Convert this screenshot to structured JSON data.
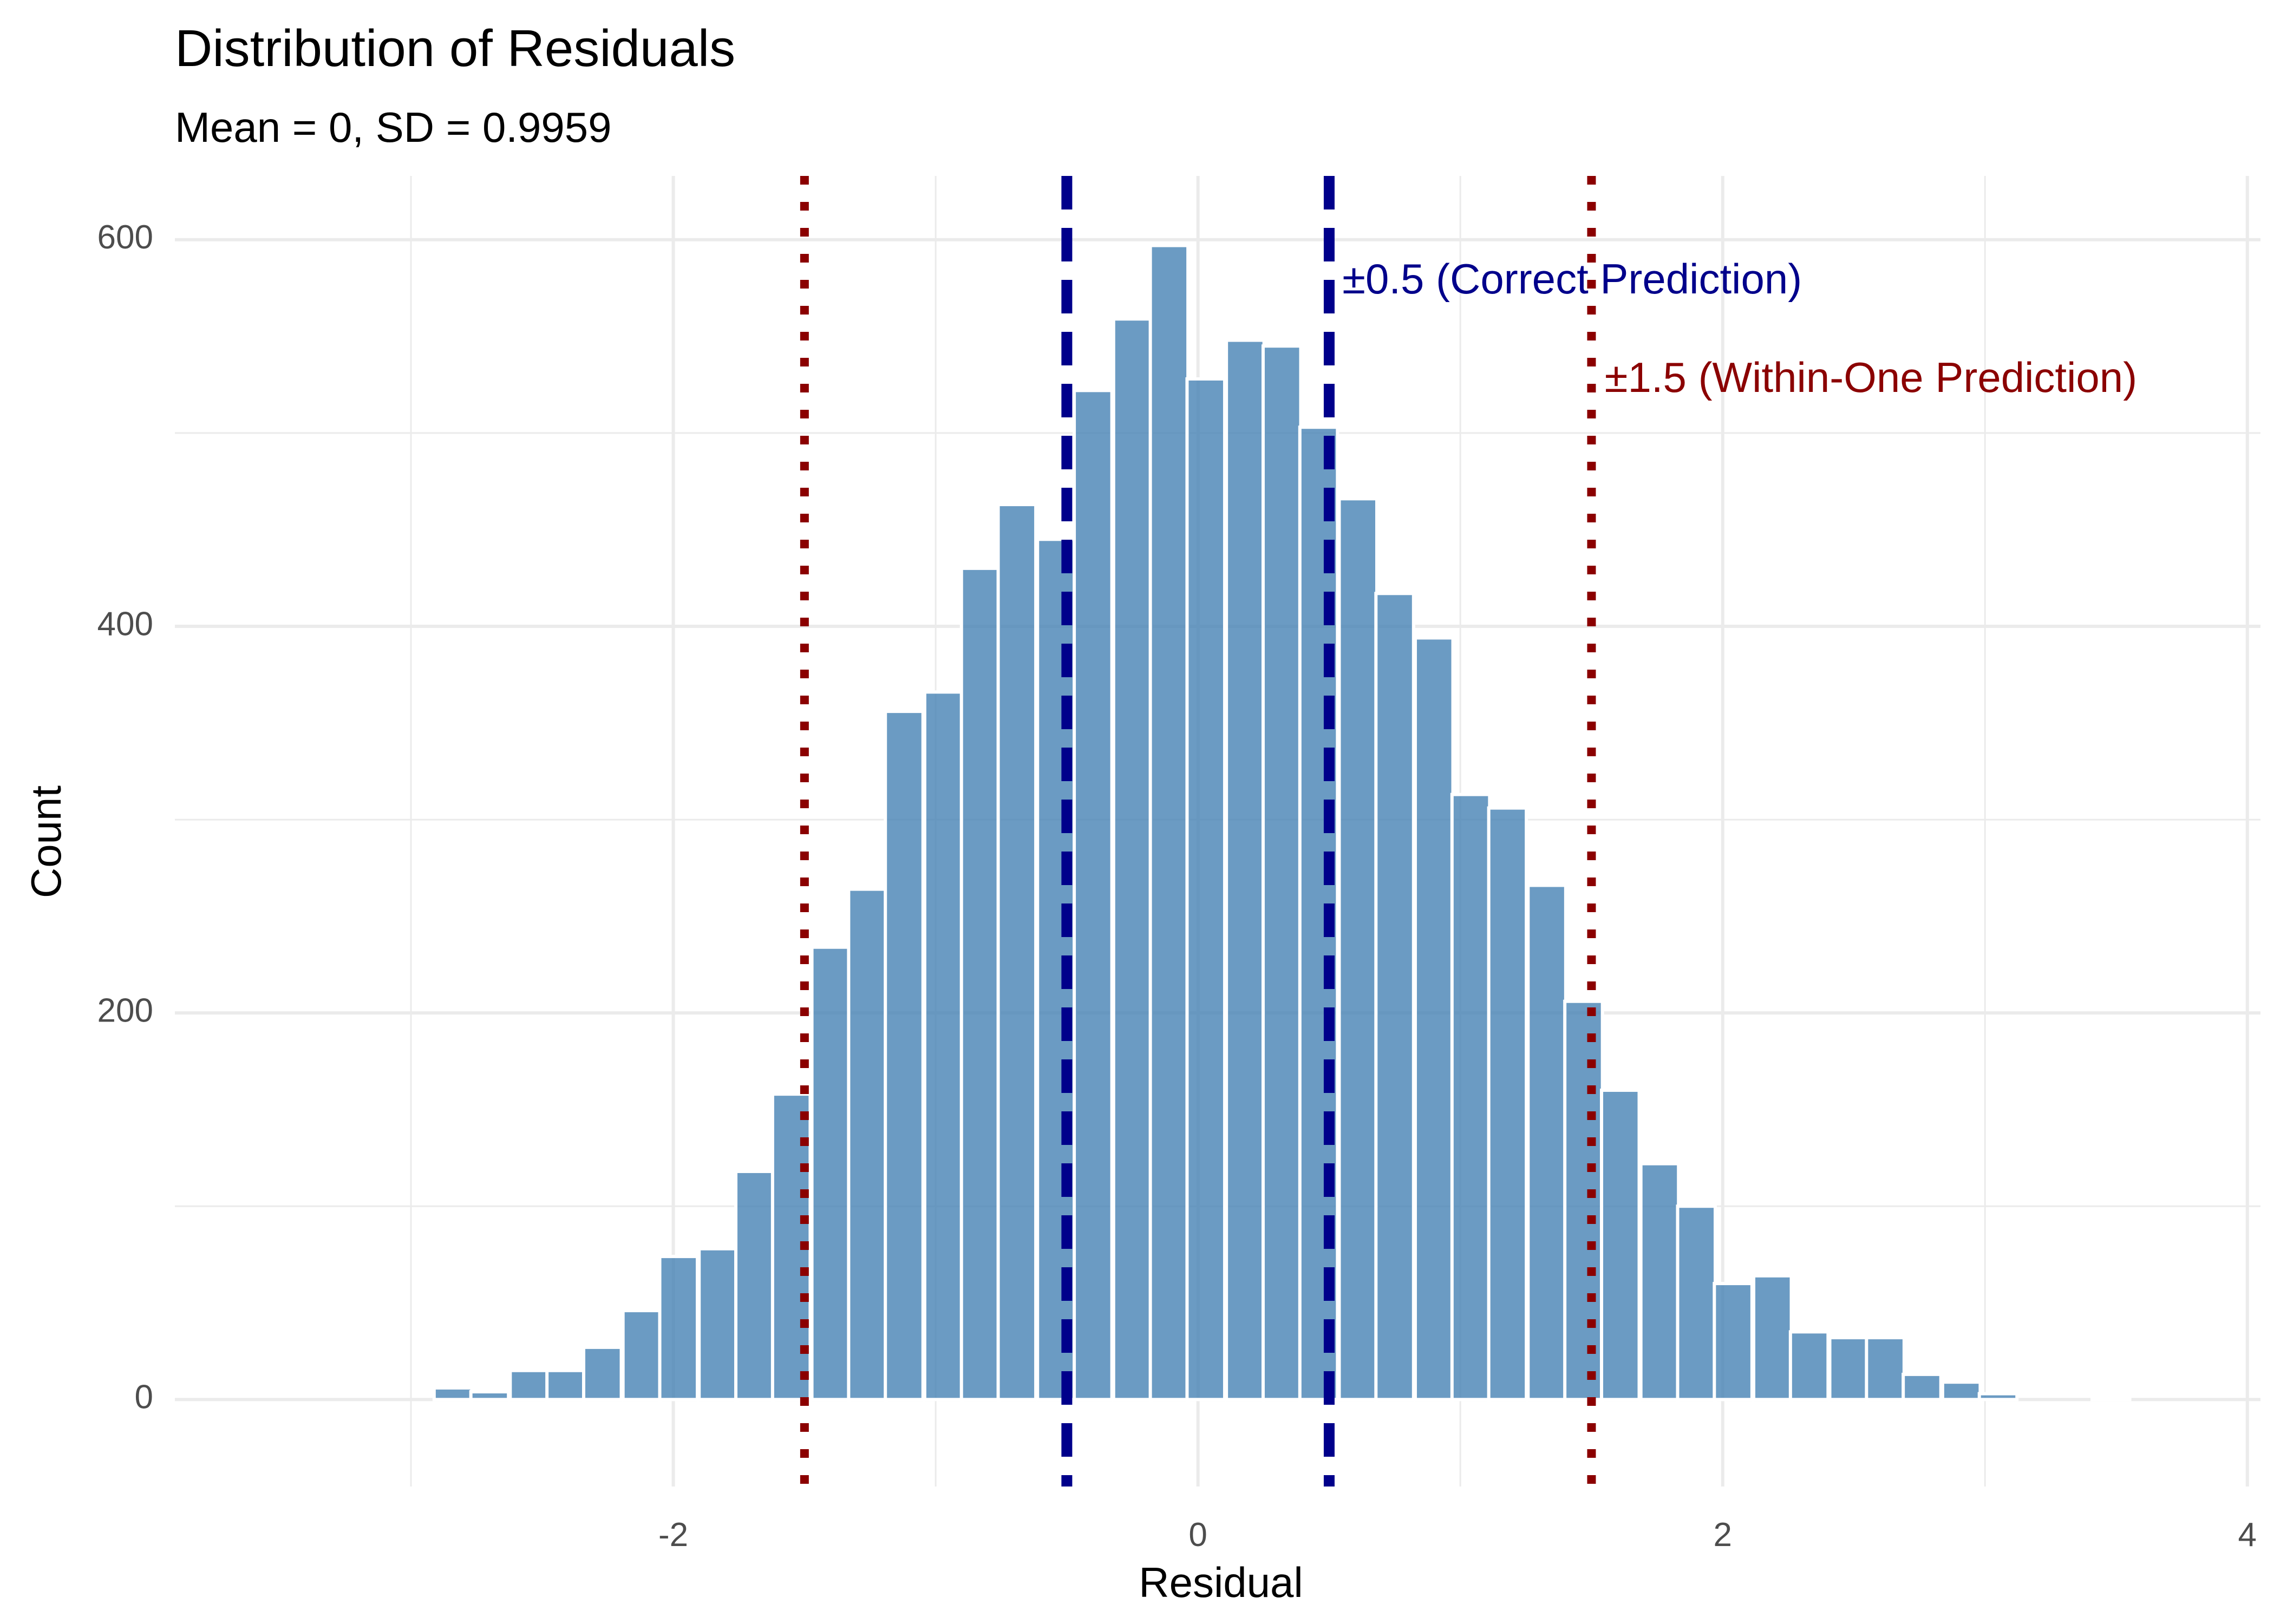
{
  "chart_data": {
    "type": "bar",
    "title": "Distribution of Residuals",
    "subtitle": "Mean = 0, SD = 0.9959",
    "xlabel": "Residual",
    "ylabel": "Count",
    "xlim": [
      -3.9,
      4.05
    ],
    "ylim": [
      -45,
      633
    ],
    "x_ticks": [
      -2,
      0,
      2,
      4
    ],
    "y_ticks": [
      0,
      200,
      400,
      600
    ],
    "grid": true,
    "bin_width": 0.1435,
    "bins": [
      {
        "x": -2.84,
        "count": 6
      },
      {
        "x": -2.7,
        "count": 4
      },
      {
        "x": -2.55,
        "count": 15
      },
      {
        "x": -2.41,
        "count": 15
      },
      {
        "x": -2.27,
        "count": 27
      },
      {
        "x": -2.12,
        "count": 46
      },
      {
        "x": -1.98,
        "count": 74
      },
      {
        "x": -1.83,
        "count": 78
      },
      {
        "x": -1.69,
        "count": 118
      },
      {
        "x": -1.55,
        "count": 158
      },
      {
        "x": -1.4,
        "count": 234
      },
      {
        "x": -1.26,
        "count": 264
      },
      {
        "x": -1.12,
        "count": 356
      },
      {
        "x": -0.97,
        "count": 366
      },
      {
        "x": -0.83,
        "count": 430
      },
      {
        "x": -0.69,
        "count": 463
      },
      {
        "x": -0.54,
        "count": 445
      },
      {
        "x": -0.4,
        "count": 522
      },
      {
        "x": -0.25,
        "count": 559
      },
      {
        "x": -0.11,
        "count": 597
      },
      {
        "x": 0.03,
        "count": 528
      },
      {
        "x": 0.18,
        "count": 548
      },
      {
        "x": 0.32,
        "count": 545
      },
      {
        "x": 0.46,
        "count": 503
      },
      {
        "x": 0.61,
        "count": 466
      },
      {
        "x": 0.75,
        "count": 417
      },
      {
        "x": 0.9,
        "count": 394
      },
      {
        "x": 1.04,
        "count": 313
      },
      {
        "x": 1.18,
        "count": 306
      },
      {
        "x": 1.33,
        "count": 266
      },
      {
        "x": 1.47,
        "count": 206
      },
      {
        "x": 1.61,
        "count": 160
      },
      {
        "x": 1.76,
        "count": 122
      },
      {
        "x": 1.9,
        "count": 100
      },
      {
        "x": 2.04,
        "count": 60
      },
      {
        "x": 2.19,
        "count": 64
      },
      {
        "x": 2.33,
        "count": 35
      },
      {
        "x": 2.48,
        "count": 32
      },
      {
        "x": 2.62,
        "count": 32
      },
      {
        "x": 2.76,
        "count": 13
      },
      {
        "x": 2.91,
        "count": 9
      },
      {
        "x": 3.05,
        "count": 3
      },
      {
        "x": 3.19,
        "count": 0
      },
      {
        "x": 3.34,
        "count": 0
      },
      {
        "x": 3.48,
        "count": 1
      }
    ],
    "reference_lines": [
      {
        "x": -0.5,
        "style": "dashed",
        "color": "#00008b"
      },
      {
        "x": 0.5,
        "style": "dashed",
        "color": "#00008b"
      },
      {
        "x": -1.5,
        "style": "dotted",
        "color": "#8b0000"
      },
      {
        "x": 1.5,
        "style": "dotted",
        "color": "#8b0000"
      }
    ],
    "annotations": [
      {
        "text": "±0.5 (Correct Prediction)",
        "x": 0.55,
        "y": 578,
        "color": "#00008b"
      },
      {
        "text": "±1.5 (Within-One Prediction)",
        "x": 1.55,
        "y": 527,
        "color": "#8b0000"
      }
    ],
    "bar_color": "#4682b4"
  }
}
